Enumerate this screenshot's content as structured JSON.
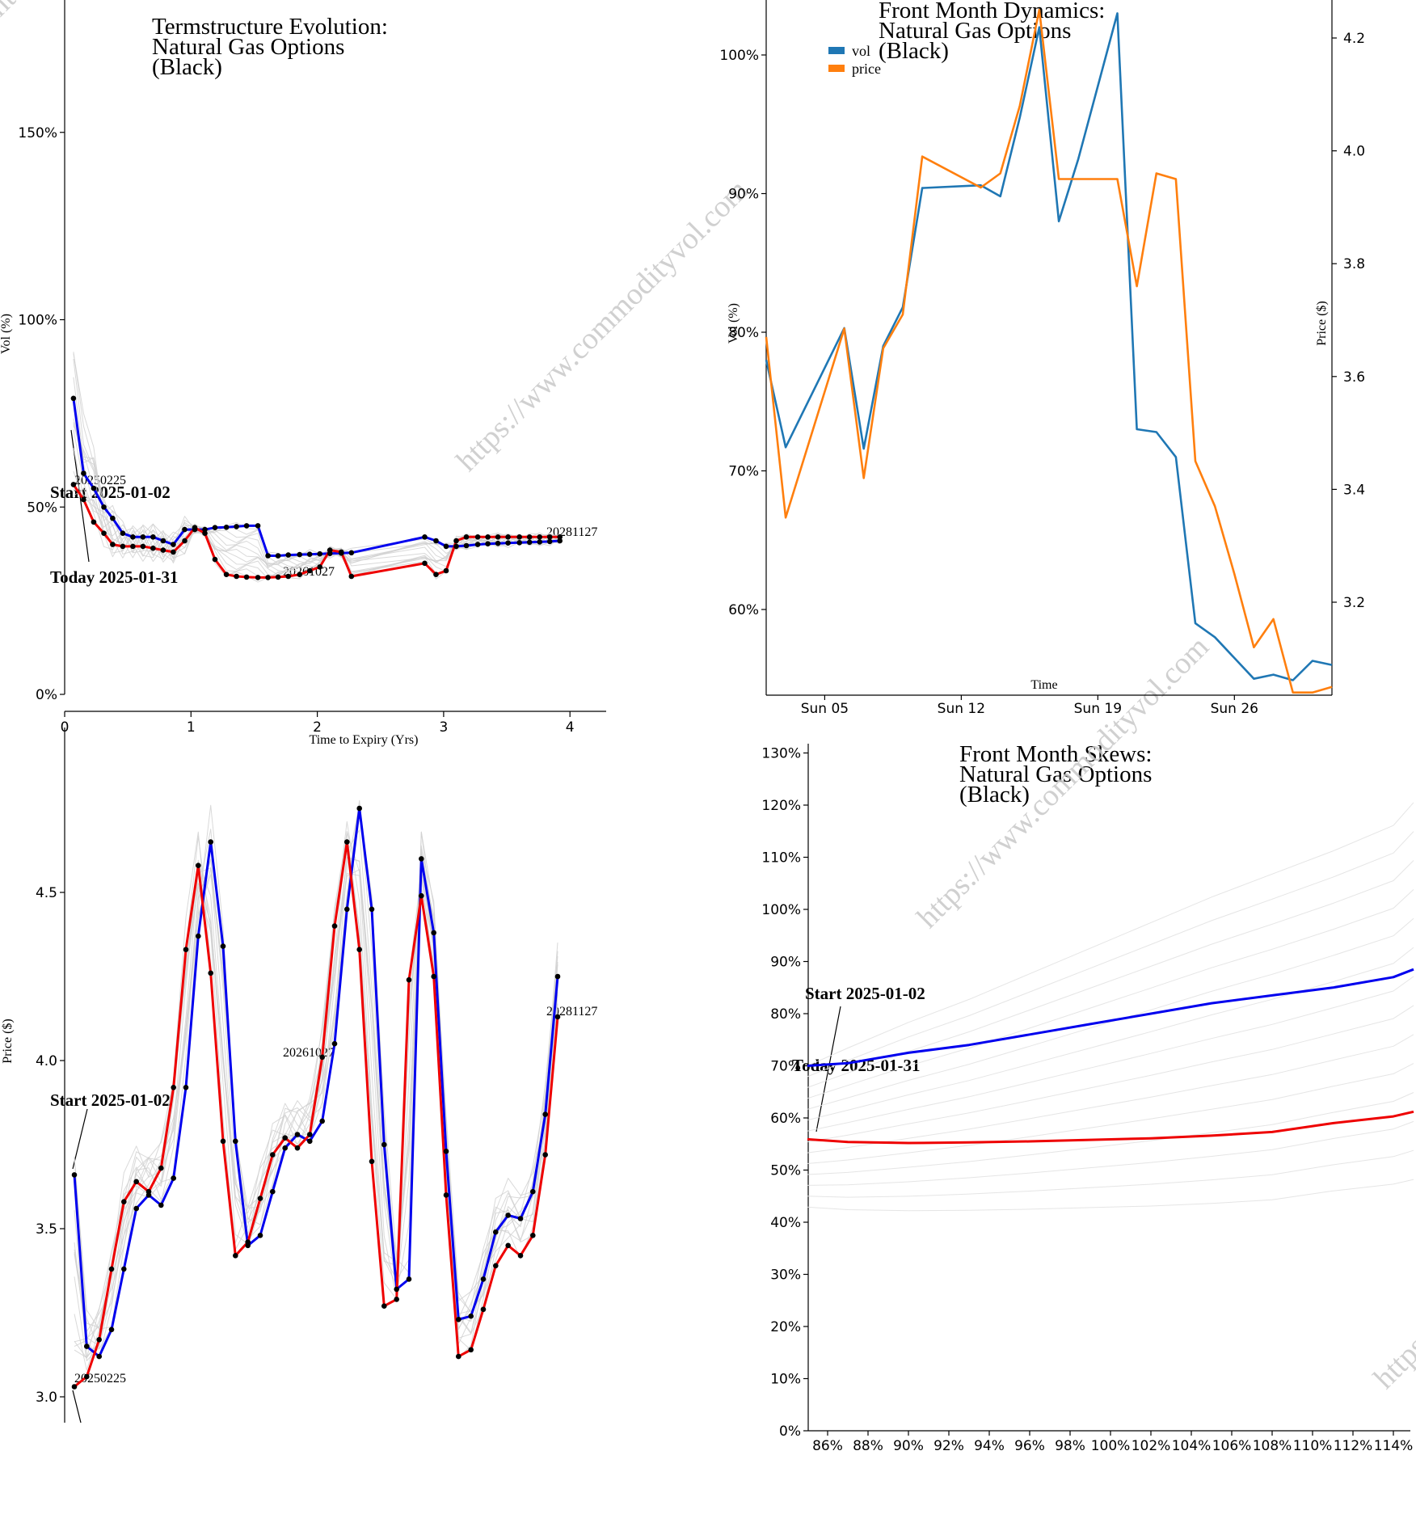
{
  "watermark": "https://www.commodityvol.com",
  "chart_data": [
    {
      "id": "termstructure",
      "type": "line",
      "title": [
        "Termstructure Evolution:",
        "Natural Gas Options",
        "(Black)"
      ],
      "xlabel": "Time to Expiry (Yrs)",
      "ylabel": "Vol (%)",
      "xlim": [
        0,
        4.3
      ],
      "ylim": [
        0,
        1.85
      ],
      "xticks": [
        0,
        1,
        2,
        3,
        4
      ],
      "yticks": [
        0,
        0.5,
        1.0,
        1.5
      ],
      "ytick_labels": [
        "0%",
        "50%",
        "100%",
        "150%"
      ],
      "annotations": {
        "start": "Start 2025-01-02",
        "today": "Today 2025-01-31",
        "first_expiry": "20250225",
        "mid_expiry": "20261027",
        "last_expiry": "20281127"
      },
      "series": [
        {
          "name": "Start 2025-01-02",
          "color": "#0000ee",
          "x": [
            0.07,
            0.15,
            0.23,
            0.31,
            0.38,
            0.46,
            0.54,
            0.62,
            0.7,
            0.78,
            0.86,
            0.95,
            1.03,
            1.11,
            1.19,
            1.28,
            1.36,
            1.44,
            1.53,
            1.61,
            1.69,
            1.77,
            1.86,
            1.94,
            2.02,
            2.1,
            2.19,
            2.27,
            2.85,
            2.94,
            3.02,
            3.1,
            3.18,
            3.27,
            3.35,
            3.43,
            3.51,
            3.6,
            3.68,
            3.76,
            3.84,
            3.92
          ],
          "y": [
            0.79,
            0.59,
            0.55,
            0.5,
            0.47,
            0.43,
            0.42,
            0.42,
            0.42,
            0.41,
            0.4,
            0.44,
            0.44,
            0.44,
            0.445,
            0.446,
            0.448,
            0.45,
            0.45,
            0.37,
            0.37,
            0.372,
            0.373,
            0.374,
            0.375,
            0.376,
            0.377,
            0.378,
            0.42,
            0.41,
            0.395,
            0.395,
            0.397,
            0.4,
            0.402,
            0.403,
            0.404,
            0.405,
            0.406,
            0.407,
            0.408,
            0.41
          ]
        },
        {
          "name": "Today 2025-01-31",
          "color": "#ee0000",
          "x": [
            0.07,
            0.15,
            0.23,
            0.31,
            0.38,
            0.46,
            0.54,
            0.62,
            0.7,
            0.78,
            0.86,
            0.95,
            1.03,
            1.11,
            1.19,
            1.28,
            1.36,
            1.44,
            1.53,
            1.61,
            1.69,
            1.77,
            1.86,
            1.94,
            2.02,
            2.1,
            2.19,
            2.27,
            2.85,
            2.94,
            3.02,
            3.1,
            3.18,
            3.27,
            3.35,
            3.43,
            3.51,
            3.6,
            3.68,
            3.76,
            3.84,
            3.92
          ],
          "y": [
            0.56,
            0.52,
            0.46,
            0.43,
            0.4,
            0.395,
            0.395,
            0.395,
            0.39,
            0.385,
            0.38,
            0.41,
            0.445,
            0.43,
            0.36,
            0.32,
            0.315,
            0.313,
            0.312,
            0.312,
            0.313,
            0.315,
            0.32,
            0.33,
            0.34,
            0.385,
            0.38,
            0.315,
            0.35,
            0.32,
            0.33,
            0.41,
            0.42,
            0.42,
            0.42,
            0.42,
            0.42,
            0.42,
            0.42,
            0.42,
            0.42,
            0.42
          ]
        }
      ]
    },
    {
      "id": "front_month_dynamics",
      "type": "line",
      "title": [
        "Front Month Dynamics:",
        "Natural Gas Options",
        "(Black)"
      ],
      "xlabel": "Time",
      "ylabel": "Vol (%)",
      "ylabel_right": "Price ($)",
      "xticks": [
        "Sun 05",
        "Sun 12",
        "Sun 19",
        "Sun 26"
      ],
      "yticks_left": [
        "60%",
        "70%",
        "80%",
        "90%",
        "100%"
      ],
      "yticks_right": [
        "3.2",
        "3.4",
        "3.6",
        "3.8",
        "4.0",
        "4.2"
      ],
      "legend": [
        "vol",
        "price"
      ],
      "series": [
        {
          "name": "vol",
          "color": "#1f77b4",
          "axis": "left",
          "x": [
            2,
            3,
            6,
            7,
            8,
            9,
            10,
            13,
            14,
            15,
            16,
            17,
            18,
            20,
            21,
            22,
            23,
            24,
            25,
            26,
            27,
            28,
            29,
            30,
            31
          ],
          "y": [
            0.78,
            0.717,
            0.803,
            0.716,
            0.79,
            0.818,
            0.904,
            0.906,
            0.898,
            0.955,
            1.02,
            0.88,
            0.925,
            1.03,
            0.73,
            0.728,
            0.71,
            0.59,
            0.58,
            0.565,
            0.55,
            0.553,
            0.549,
            0.563,
            0.56
          ]
        },
        {
          "name": "price",
          "color": "#ff7f0e",
          "axis": "right",
          "x": [
            2,
            3,
            6,
            7,
            8,
            9,
            10,
            13,
            14,
            15,
            16,
            17,
            18,
            20,
            21,
            22,
            23,
            24,
            25,
            26,
            27,
            28,
            29,
            30,
            31
          ],
          "y": [
            3.67,
            3.35,
            3.685,
            3.42,
            3.65,
            3.71,
            3.99,
            3.935,
            3.96,
            4.08,
            4.25,
            3.95,
            3.95,
            3.95,
            3.76,
            3.96,
            3.95,
            3.45,
            3.37,
            3.25,
            3.12,
            3.17,
            3.04,
            3.04,
            3.05
          ]
        }
      ]
    },
    {
      "id": "forward_prices",
      "type": "line",
      "title": [],
      "ylabel": "Price ($)",
      "yticks": [
        3.0,
        3.5,
        4.0,
        4.5
      ],
      "ytick_labels": [
        "3.0",
        "3.5",
        "4.0",
        "4.5"
      ],
      "annotations": {
        "start": "Start 2025-01-02",
        "first_expiry": "20250225",
        "mid_expiry": "20261027",
        "last_expiry": "20281127"
      },
      "series": [
        {
          "name": "Start 2025-01-02",
          "color": "#0000ee",
          "y": [
            3.66,
            3.15,
            3.12,
            3.2,
            3.38,
            3.56,
            3.6,
            3.57,
            3.65,
            3.92,
            4.37,
            4.65,
            4.34,
            3.76,
            3.45,
            3.48,
            3.61,
            3.74,
            3.78,
            3.76,
            3.82,
            4.05,
            4.45,
            4.75,
            4.45,
            3.75,
            3.32,
            3.35,
            4.6,
            4.38,
            3.73,
            3.23,
            3.24,
            3.35,
            3.49,
            3.54,
            3.53,
            3.61,
            3.84,
            4.25
          ]
        },
        {
          "name": "Today 2025-01-31",
          "color": "#ee0000",
          "y": [
            3.03,
            3.06,
            3.17,
            3.38,
            3.58,
            3.64,
            3.61,
            3.68,
            3.92,
            4.33,
            4.58,
            4.26,
            3.76,
            3.42,
            3.46,
            3.59,
            3.72,
            3.77,
            3.74,
            3.78,
            4.01,
            4.4,
            4.65,
            4.33,
            3.7,
            3.27,
            3.29,
            4.24,
            4.49,
            4.25,
            3.6,
            3.12,
            3.14,
            3.26,
            3.39,
            3.45,
            3.42,
            3.48,
            3.72,
            4.13
          ]
        }
      ]
    },
    {
      "id": "front_month_skews",
      "type": "line",
      "title": [
        "Front Month Skews:",
        "Natural Gas Options",
        "(Black)"
      ],
      "xticks": [
        "86%",
        "88%",
        "90%",
        "92%",
        "94%",
        "96%",
        "98%",
        "100%",
        "102%",
        "104%",
        "106%",
        "108%",
        "110%",
        "112%",
        "114%"
      ],
      "yticks": [
        "0%",
        "10%",
        "20%",
        "30%",
        "40%",
        "50%",
        "60%",
        "70%",
        "80%",
        "90%",
        "100%",
        "110%",
        "120%",
        "130%"
      ],
      "annotations": {
        "start": "Start 2025-01-02",
        "today": "Today 2025-01-31"
      },
      "series": [
        {
          "name": "Start 2025-01-02",
          "color": "#0000ee",
          "x": [
            0.85,
            0.87,
            0.9,
            0.93,
            0.96,
            0.99,
            1.02,
            1.05,
            1.08,
            1.11,
            1.14,
            1.15
          ],
          "y": [
            0.7,
            0.705,
            0.725,
            0.74,
            0.76,
            0.78,
            0.8,
            0.82,
            0.835,
            0.85,
            0.87,
            0.885
          ]
        },
        {
          "name": "Today 2025-01-31",
          "color": "#ee0000",
          "x": [
            0.85,
            0.87,
            0.9,
            0.93,
            0.96,
            0.99,
            1.02,
            1.05,
            1.08,
            1.11,
            1.14,
            1.15
          ],
          "y": [
            0.559,
            0.554,
            0.552,
            0.553,
            0.555,
            0.558,
            0.561,
            0.566,
            0.573,
            0.59,
            0.603,
            0.612
          ]
        }
      ]
    }
  ]
}
